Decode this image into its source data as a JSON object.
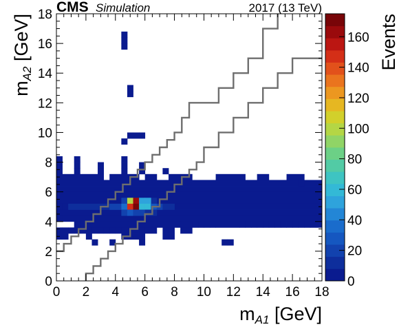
{
  "header": {
    "experiment": "CMS",
    "tag": "Simulation",
    "energy": "2017 (13 TeV)"
  },
  "chart_data": {
    "type": "heatmap",
    "xlabel": {
      "main": "m",
      "sub": "A1",
      "unit": " [GeV]"
    },
    "ylabel": {
      "main": "m",
      "sub": "A2",
      "unit": " [GeV]"
    },
    "zlabel": "Events",
    "xlim": [
      0,
      18
    ],
    "ylim": [
      0,
      18
    ],
    "zlim": [
      0,
      175
    ],
    "x_ticks": [
      0,
      2,
      4,
      6,
      8,
      10,
      12,
      14,
      16,
      18
    ],
    "y_ticks": [
      0,
      2,
      4,
      6,
      8,
      10,
      12,
      14,
      16,
      18
    ],
    "z_ticks": [
      0,
      20,
      40,
      60,
      80,
      100,
      120,
      140,
      160
    ],
    "bin_width": 0.4,
    "bins": [
      [
        4.4,
        16.4,
        1
      ],
      [
        4.4,
        16.0,
        1
      ],
      [
        4.4,
        15.6,
        1
      ],
      [
        4.8,
        12.8,
        1
      ],
      [
        4.8,
        12.4,
        1
      ],
      [
        4.8,
        9.6,
        1
      ],
      [
        5.2,
        9.6,
        1
      ],
      [
        5.6,
        9.6,
        1
      ],
      [
        4.4,
        9.2,
        1
      ],
      [
        0.0,
        8.0,
        1
      ],
      [
        1.2,
        8.0,
        1
      ],
      [
        4.4,
        8.0,
        1
      ],
      [
        0.0,
        7.6,
        1
      ],
      [
        1.2,
        7.6,
        1
      ],
      [
        2.8,
        7.6,
        1
      ],
      [
        4.4,
        7.6,
        1
      ],
      [
        5.6,
        7.6,
        1
      ],
      [
        0.0,
        7.2,
        1
      ],
      [
        1.2,
        7.2,
        1
      ],
      [
        2.8,
        7.2,
        1
      ],
      [
        4.4,
        7.2,
        1
      ],
      [
        5.6,
        7.2,
        1
      ],
      [
        7.2,
        7.2,
        1
      ],
      [
        16.4,
        6.4,
        1
      ],
      [
        4.4,
        5.2,
        22
      ],
      [
        5.2,
        5.2,
        22
      ],
      [
        6.0,
        5.2,
        14
      ],
      [
        6.4,
        5.2,
        10
      ],
      [
        2.8,
        5.2,
        6
      ],
      [
        3.2,
        5.2,
        6
      ],
      [
        3.6,
        5.2,
        6
      ],
      [
        4.8,
        5.2,
        100
      ],
      [
        5.2,
        5.2,
        165
      ],
      [
        5.6,
        5.2,
        55
      ],
      [
        6.0,
        5.2,
        55
      ],
      [
        0.4,
        4.8,
        6
      ],
      [
        0.8,
        4.8,
        12
      ],
      [
        1.2,
        4.8,
        12
      ],
      [
        1.6,
        4.8,
        12
      ],
      [
        2.0,
        4.8,
        14
      ],
      [
        2.4,
        4.8,
        14
      ],
      [
        2.8,
        4.8,
        14
      ],
      [
        3.2,
        4.8,
        14
      ],
      [
        3.6,
        4.8,
        18
      ],
      [
        4.0,
        4.8,
        22
      ],
      [
        4.4,
        4.8,
        35
      ],
      [
        4.8,
        4.8,
        150
      ],
      [
        5.2,
        4.8,
        175
      ],
      [
        5.6,
        4.8,
        60
      ],
      [
        6.0,
        4.8,
        60
      ],
      [
        6.4,
        4.8,
        30
      ],
      [
        6.8,
        4.8,
        18
      ],
      [
        7.2,
        4.8,
        14
      ],
      [
        7.6,
        4.8,
        10
      ],
      [
        4.4,
        4.4,
        18
      ],
      [
        4.8,
        4.4,
        24
      ],
      [
        5.2,
        4.4,
        22
      ],
      [
        5.6,
        4.4,
        18
      ],
      [
        6.0,
        4.4,
        14
      ],
      [
        6.4,
        4.4,
        10
      ],
      [
        1.2,
        3.6,
        1
      ],
      [
        1.6,
        3.6,
        1
      ],
      [
        2.0,
        3.6,
        1
      ],
      [
        4.8,
        3.6,
        1
      ],
      [
        6.4,
        3.6,
        1
      ],
      [
        8.4,
        3.6,
        1
      ],
      [
        8.8,
        3.6,
        1
      ],
      [
        9.2,
        3.6,
        1
      ],
      [
        10.0,
        3.6,
        1
      ],
      [
        10.4,
        3.6,
        1
      ],
      [
        12.4,
        3.6,
        1
      ],
      [
        12.8,
        3.6,
        1
      ],
      [
        13.6,
        3.6,
        1
      ],
      [
        14.0,
        3.6,
        1
      ],
      [
        14.4,
        3.6,
        1
      ],
      [
        14.8,
        3.6,
        1
      ],
      [
        15.2,
        3.6,
        1
      ],
      [
        15.6,
        3.6,
        1
      ],
      [
        16.0,
        3.6,
        1
      ],
      [
        16.4,
        3.6,
        1
      ],
      [
        16.8,
        3.6,
        1
      ],
      [
        17.2,
        3.6,
        1
      ],
      [
        17.6,
        3.6,
        1
      ],
      [
        0.0,
        3.2,
        1
      ],
      [
        0.4,
        3.2,
        1
      ],
      [
        0.8,
        3.2,
        1
      ],
      [
        1.2,
        3.2,
        1
      ],
      [
        1.6,
        3.2,
        1
      ],
      [
        2.0,
        3.2,
        1
      ],
      [
        2.4,
        3.2,
        1
      ],
      [
        2.8,
        3.2,
        1
      ],
      [
        3.2,
        3.2,
        1
      ],
      [
        3.6,
        3.2,
        1
      ],
      [
        4.0,
        3.2,
        1
      ],
      [
        4.4,
        3.2,
        1
      ],
      [
        4.8,
        3.2,
        1
      ],
      [
        5.2,
        3.2,
        1
      ],
      [
        5.6,
        3.2,
        1
      ],
      [
        6.0,
        3.2,
        1
      ],
      [
        6.4,
        3.2,
        1
      ],
      [
        7.2,
        3.2,
        1
      ],
      [
        7.6,
        3.2,
        1
      ],
      [
        8.4,
        3.2,
        1
      ],
      [
        8.8,
        3.2,
        1
      ],
      [
        0.0,
        2.8,
        1
      ],
      [
        0.4,
        2.8,
        1
      ],
      [
        2.0,
        2.8,
        1
      ],
      [
        4.4,
        2.8,
        1
      ],
      [
        4.8,
        2.8,
        1
      ],
      [
        5.2,
        2.8,
        1
      ],
      [
        5.6,
        2.8,
        1
      ],
      [
        7.2,
        2.8,
        1
      ],
      [
        7.6,
        2.8,
        1
      ],
      [
        2.4,
        2.4,
        1
      ],
      [
        3.6,
        2.4,
        1
      ],
      [
        5.6,
        2.4,
        1
      ],
      [
        11.2,
        2.4,
        1
      ],
      [
        11.6,
        2.4,
        1
      ]
    ],
    "band_rows": [
      {
        "y": 6.4,
        "x0": 0.0,
        "x1": 18.0
      },
      {
        "y": 6.0,
        "x0": 0.0,
        "x1": 18.0
      },
      {
        "y": 5.6,
        "x0": 0.0,
        "x1": 18.0
      },
      {
        "y": 5.2,
        "x0": 0.0,
        "x1": 18.0
      },
      {
        "y": 4.8,
        "x0": 0.0,
        "x1": 18.0
      },
      {
        "y": 4.4,
        "x0": 0.0,
        "x1": 18.0
      },
      {
        "y": 4.0,
        "x0": 0.0,
        "x1": 18.0
      },
      {
        "y": 6.8,
        "x0": 0.0,
        "x1": 3.2
      },
      {
        "y": 6.8,
        "x0": 3.6,
        "x1": 5.6
      },
      {
        "y": 6.8,
        "x0": 6.0,
        "x1": 6.8
      },
      {
        "y": 6.8,
        "x0": 7.6,
        "x1": 9.2
      },
      {
        "y": 6.8,
        "x0": 10.8,
        "x1": 12.8
      },
      {
        "y": 6.8,
        "x0": 13.6,
        "x1": 14.4
      },
      {
        "y": 6.8,
        "x0": 15.6,
        "x1": 16.8
      },
      {
        "y": 3.6,
        "x0": 2.4,
        "x1": 8.4
      },
      {
        "y": 3.6,
        "x0": 9.6,
        "x1": 10.0
      },
      {
        "y": 3.6,
        "x0": 10.8,
        "x1": 12.4
      },
      {
        "y": 3.6,
        "x0": 13.2,
        "x1": 13.6
      },
      {
        "y": 4.0,
        "x0": 0.0,
        "x1": 0.4
      }
    ],
    "band_value": 1,
    "hot_rows": [
      {
        "y": 5.2,
        "x0": 0.0,
        "x1": 4.4,
        "value": 6
      },
      {
        "y": 4.8,
        "x0": 0.0,
        "x1": 0.4,
        "value": 3
      }
    ],
    "contours": [
      [
        [
          0.0,
          2.0
        ],
        [
          0.5,
          2.0
        ],
        [
          0.5,
          2.5
        ],
        [
          1.0,
          2.5
        ],
        [
          1.0,
          3.0
        ],
        [
          1.5,
          3.0
        ],
        [
          1.5,
          3.5
        ],
        [
          2.0,
          3.5
        ],
        [
          2.0,
          4.0
        ],
        [
          2.5,
          4.0
        ],
        [
          2.5,
          4.5
        ],
        [
          3.0,
          4.5
        ],
        [
          3.0,
          5.0
        ],
        [
          3.5,
          5.0
        ],
        [
          3.5,
          5.5
        ],
        [
          4.0,
          5.5
        ],
        [
          4.0,
          6.0
        ],
        [
          4.5,
          6.0
        ],
        [
          4.5,
          6.5
        ],
        [
          5.0,
          6.5
        ],
        [
          5.0,
          7.0
        ],
        [
          5.5,
          7.0
        ],
        [
          5.5,
          7.5
        ],
        [
          6.0,
          7.5
        ],
        [
          6.0,
          8.0
        ],
        [
          6.5,
          8.0
        ],
        [
          6.5,
          8.5
        ],
        [
          7.0,
          8.5
        ],
        [
          7.0,
          9.0
        ],
        [
          7.5,
          9.0
        ],
        [
          7.5,
          9.5
        ],
        [
          8.0,
          9.5
        ],
        [
          8.0,
          10.0
        ],
        [
          8.5,
          10.0
        ],
        [
          8.5,
          11.0
        ],
        [
          9.0,
          11.0
        ],
        [
          9.0,
          12.0
        ],
        [
          11.0,
          12.0
        ],
        [
          11.0,
          13.0
        ],
        [
          12.0,
          13.0
        ],
        [
          12.0,
          14.0
        ],
        [
          13.0,
          14.0
        ],
        [
          13.0,
          15.0
        ],
        [
          14.0,
          15.0
        ],
        [
          14.0,
          17.0
        ],
        [
          15.0,
          17.0
        ],
        [
          15.0,
          18.0
        ]
      ],
      [
        [
          2.0,
          0.0
        ],
        [
          2.0,
          0.5
        ],
        [
          2.5,
          0.5
        ],
        [
          2.5,
          1.0
        ],
        [
          3.0,
          1.0
        ],
        [
          3.0,
          1.5
        ],
        [
          3.5,
          1.5
        ],
        [
          3.5,
          2.0
        ],
        [
          4.0,
          2.0
        ],
        [
          4.0,
          2.5
        ],
        [
          4.5,
          2.5
        ],
        [
          4.5,
          3.0
        ],
        [
          5.0,
          3.0
        ],
        [
          5.0,
          3.5
        ],
        [
          5.5,
          3.5
        ],
        [
          5.5,
          4.0
        ],
        [
          6.0,
          4.0
        ],
        [
          6.0,
          4.5
        ],
        [
          6.5,
          4.5
        ],
        [
          6.5,
          5.0
        ],
        [
          7.0,
          5.0
        ],
        [
          7.0,
          5.5
        ],
        [
          7.5,
          5.5
        ],
        [
          7.5,
          6.0
        ],
        [
          8.0,
          6.0
        ],
        [
          8.0,
          6.5
        ],
        [
          8.5,
          6.5
        ],
        [
          8.5,
          7.0
        ],
        [
          9.0,
          7.0
        ],
        [
          9.0,
          7.5
        ],
        [
          9.5,
          7.5
        ],
        [
          9.5,
          8.0
        ],
        [
          10.0,
          8.0
        ],
        [
          10.0,
          9.0
        ],
        [
          11.0,
          9.0
        ],
        [
          11.0,
          10.0
        ],
        [
          12.0,
          10.0
        ],
        [
          12.0,
          11.0
        ],
        [
          13.0,
          11.0
        ],
        [
          13.0,
          12.0
        ],
        [
          14.0,
          12.0
        ],
        [
          14.0,
          13.0
        ],
        [
          15.0,
          13.0
        ],
        [
          15.0,
          14.0
        ],
        [
          16.0,
          14.0
        ],
        [
          16.0,
          15.0
        ],
        [
          18.0,
          15.0
        ]
      ]
    ],
    "contour_color": "#6e6e6e",
    "palette": [
      "#0a1b8f",
      "#0e2e9c",
      "#1242ae",
      "#1557c0",
      "#1a6ccc",
      "#2386d6",
      "#2ea3dc",
      "#33b9d6",
      "#3ec4c2",
      "#52cba5",
      "#6cd086",
      "#90d466",
      "#b4d645",
      "#d2d02b",
      "#e6b722",
      "#ec9720",
      "#ea741e",
      "#e2511b",
      "#d42f17",
      "#bb1612",
      "#9a0a0c",
      "#780508"
    ]
  }
}
